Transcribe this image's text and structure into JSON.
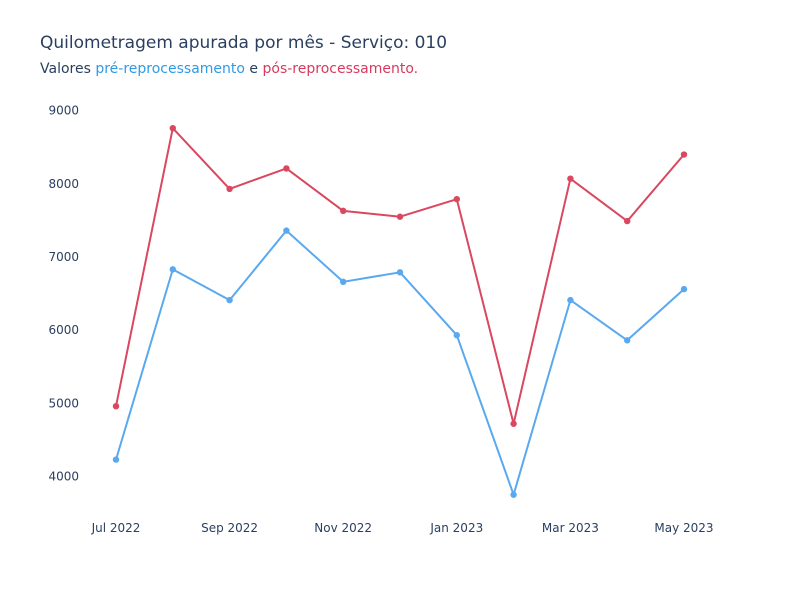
{
  "chart_data": {
    "type": "line",
    "title": "Quilometragem apurada por mês - Serviço: 010",
    "subtitle": {
      "prefix": "Valores",
      "series_pre": "pré-reprocessamento",
      "connector": "e",
      "series_post": "pós-reprocessamento."
    },
    "x": [
      "2022-07",
      "2022-08",
      "2022-09",
      "2022-10",
      "2022-11",
      "2022-12",
      "2023-01",
      "2023-02",
      "2023-03",
      "2023-04",
      "2023-05"
    ],
    "x_tick_labels": [
      "Jul 2022",
      "Sep 2022",
      "Nov 2022",
      "Jan 2023",
      "Mar 2023",
      "May 2023"
    ],
    "x_tick_positions": [
      "2022-07",
      "2022-09",
      "2022-11",
      "2023-01",
      "2023-03",
      "2023-05"
    ],
    "y_ticks": [
      4000,
      5000,
      6000,
      7000,
      8000,
      9000
    ],
    "ylim": [
      3500,
      9200
    ],
    "xlabel": "",
    "ylabel": "",
    "grid": false,
    "series": [
      {
        "id": "pos",
        "color": "#d9485f",
        "values": [
          4960,
          8760,
          7930,
          8210,
          7630,
          7550,
          7790,
          4720,
          8070,
          7490,
          8400
        ]
      },
      {
        "id": "pre",
        "color": "#5aa9ef",
        "values": [
          4230,
          6830,
          6410,
          7360,
          6660,
          6790,
          5930,
          3750,
          6410,
          5860,
          6560
        ]
      }
    ]
  }
}
